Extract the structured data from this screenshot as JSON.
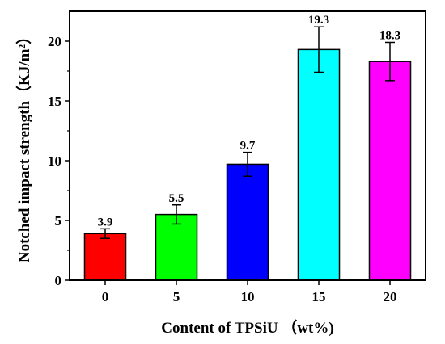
{
  "chart_data": {
    "type": "bar",
    "categories": [
      "0",
      "5",
      "10",
      "15",
      "20"
    ],
    "values": [
      3.9,
      5.5,
      9.7,
      19.3,
      18.3
    ],
    "value_labels": [
      "3.9",
      "5.5",
      "9.7",
      "19.3",
      "18.3"
    ],
    "errors": [
      0.4,
      0.8,
      1.0,
      1.9,
      1.6
    ],
    "colors": [
      "#ff0000",
      "#00ff00",
      "#0000ff",
      "#00ffff",
      "#ff00ff"
    ],
    "xlabel": "Content of TPSiU （wt%)",
    "ylabel": "Notched impact strength（KJ/m²）",
    "ylim": [
      0,
      22.5
    ],
    "yticks": [
      0,
      5,
      10,
      15,
      20
    ],
    "grid": false
  }
}
